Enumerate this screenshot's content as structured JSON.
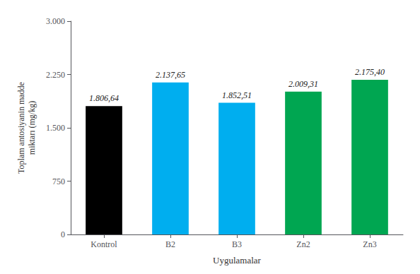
{
  "chart_data": {
    "type": "bar",
    "categories": [
      "Kontrol",
      "B2",
      "B3",
      "Zn2",
      "Zn3"
    ],
    "values": [
      1806.64,
      2137.65,
      1852.51,
      2009.31,
      2175.4
    ],
    "value_labels": [
      "1.806,64",
      "2.137,65",
      "1.852,51",
      "2.009,31",
      "2.175,40"
    ],
    "colors": [
      "#000000",
      "#00AEEF",
      "#00AEEF",
      "#00A651",
      "#00A651"
    ],
    "xlabel": "Uygulamalar",
    "ylabel": "Toplam antosiyanin madde\nmiktarı (mg/kg)",
    "ylim": [
      0,
      3000
    ],
    "yticks": [
      0,
      750,
      {
        "value": 1500,
        "label": "1.500"
      },
      {
        "value": 2250,
        "label": "2.250"
      },
      {
        "value": 3000,
        "label": "3.000"
      }
    ],
    "grid": false,
    "data_labels": true
  }
}
